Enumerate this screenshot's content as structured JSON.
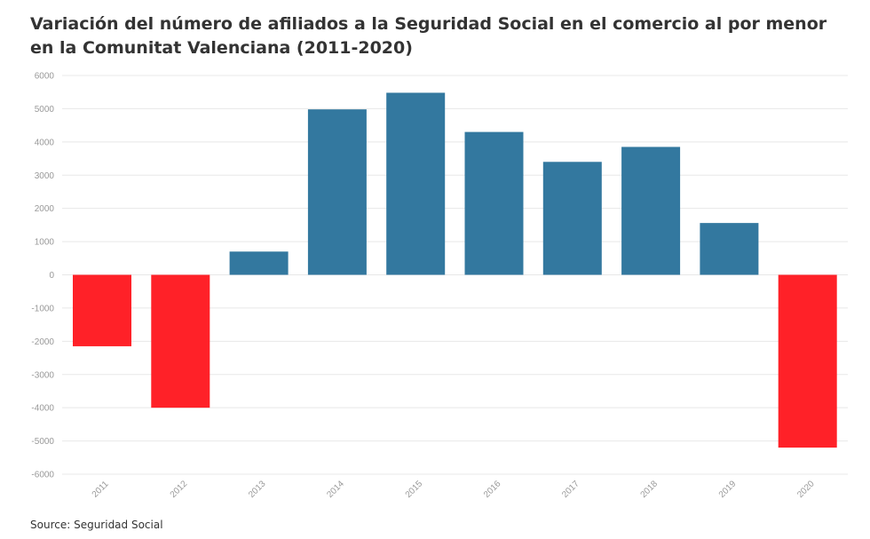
{
  "header": {
    "title": "Variación del número de afiliados a la Seguridad Social en el comercio al por menor en la Comunitat Valenciana (2011-2020)"
  },
  "footer": {
    "source": "Source: Seguridad Social"
  },
  "colors": {
    "positive": "#33789f",
    "negative": "#ff2128",
    "grid": "#e8e8e8",
    "tick_text": "#999999"
  },
  "chart_data": {
    "type": "bar",
    "categories": [
      "2011",
      "2012",
      "2013",
      "2014",
      "2015",
      "2016",
      "2017",
      "2018",
      "2019",
      "2020"
    ],
    "values": [
      -2150,
      -4000,
      700,
      4980,
      5480,
      4300,
      3400,
      3850,
      1560,
      -5200
    ],
    "ylim": [
      -6000,
      6000
    ],
    "yticks": [
      "6000",
      "5000",
      "4000",
      "3000",
      "2000",
      "1000",
      "0",
      "-1000",
      "-2000",
      "-3000",
      "-4000",
      "-5000",
      "-6000"
    ],
    "title": "Variación del número de afiliados a la Seguridad Social en el comercio al por menor en la Comunitat Valenciana (2011-2020)",
    "xlabel": "",
    "ylabel": "",
    "grid": true,
    "legend": "none"
  }
}
